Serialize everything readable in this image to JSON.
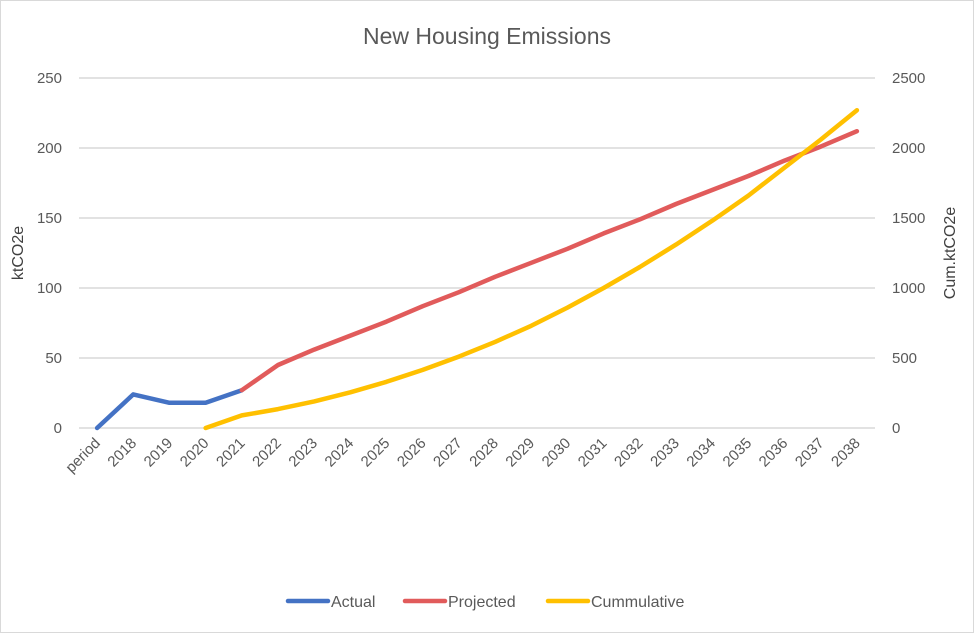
{
  "chart_data": {
    "type": "line",
    "title": "New Housing Emissions",
    "xlabel": "",
    "ylabel": "ktCO2e",
    "y2label": "Cum.ktCO2e",
    "categories": [
      "period",
      "2018",
      "2019",
      "2020",
      "2021",
      "2022",
      "2023",
      "2024",
      "2025",
      "2026",
      "2027",
      "2028",
      "2029",
      "2030",
      "2031",
      "2032",
      "2033",
      "2034",
      "2035",
      "2036",
      "2037",
      "2038"
    ],
    "ylim": [
      0,
      250
    ],
    "y2lim": [
      0,
      2500
    ],
    "yticks": [
      "0",
      "50",
      "100",
      "150",
      "200",
      "250"
    ],
    "y2ticks": [
      "0",
      "500",
      "1000",
      "1500",
      "2000",
      "2500"
    ],
    "grid": true,
    "legend_position": "bottom",
    "series": [
      {
        "name": "Actual",
        "axis": "left",
        "color": "#4472C4",
        "values": [
          0,
          24,
          18,
          18,
          27,
          null,
          null,
          null,
          null,
          null,
          null,
          null,
          null,
          null,
          null,
          null,
          null,
          null,
          null,
          null,
          null,
          null
        ]
      },
      {
        "name": "Projected",
        "axis": "left",
        "color": "#E15B5B",
        "values": [
          null,
          null,
          null,
          null,
          27,
          45,
          56,
          66,
          76,
          87,
          97,
          108,
          118,
          128,
          139,
          149,
          160,
          170,
          180,
          191,
          201,
          212
        ]
      },
      {
        "name": "Cummulative",
        "axis": "right",
        "color": "#FFC000",
        "values": [
          null,
          null,
          null,
          0,
          90,
          135,
          190,
          255,
          330,
          415,
          510,
          615,
          730,
          860,
          1000,
          1150,
          1310,
          1480,
          1660,
          1860,
          2060,
          2270
        ]
      }
    ]
  }
}
